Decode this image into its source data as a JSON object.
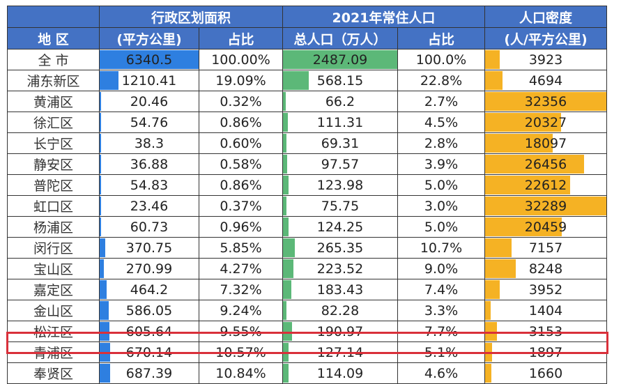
{
  "header": {
    "group_area": "行政区划面积",
    "group_pop": "2021年常住人口",
    "group_density": "人口密度",
    "col_region": "地 区",
    "col_area": "(平方公里)",
    "col_area_pct": "占比",
    "col_pop": "总人口（万人）",
    "col_pop_pct": "占比",
    "col_density": "(人/平方公里)"
  },
  "colors": {
    "header_bg": "#4472c4",
    "area_bar": "#2e7fe0",
    "pop_bar": "#5cb878",
    "density_bar": "#f5b224",
    "highlight": "#d9303a"
  },
  "highlighted_row": "松江区",
  "rows": [
    {
      "region": "全 市",
      "area": "6340.5",
      "area_pct": "100.00%",
      "pop": "2487.09",
      "pop_pct": "100.0%",
      "density": "3923"
    },
    {
      "region": "浦东新区",
      "area": "1210.41",
      "area_pct": "19.09%",
      "pop": "568.15",
      "pop_pct": "22.8%",
      "density": "4694"
    },
    {
      "region": "黄浦区",
      "area": "20.46",
      "area_pct": "0.32%",
      "pop": "66.2",
      "pop_pct": "2.7%",
      "density": "32356"
    },
    {
      "region": "徐汇区",
      "area": "54.76",
      "area_pct": "0.86%",
      "pop": "111.31",
      "pop_pct": "4.5%",
      "density": "20327"
    },
    {
      "region": "长宁区",
      "area": "38.3",
      "area_pct": "0.60%",
      "pop": "69.31",
      "pop_pct": "2.8%",
      "density": "18097"
    },
    {
      "region": "静安区",
      "area": "36.88",
      "area_pct": "0.58%",
      "pop": "97.57",
      "pop_pct": "3.9%",
      "density": "26456"
    },
    {
      "region": "普陀区",
      "area": "54.83",
      "area_pct": "0.86%",
      "pop": "123.98",
      "pop_pct": "5.0%",
      "density": "22612"
    },
    {
      "region": "虹口区",
      "area": "23.46",
      "area_pct": "0.37%",
      "pop": "75.75",
      "pop_pct": "3.0%",
      "density": "32289"
    },
    {
      "region": "杨浦区",
      "area": "60.73",
      "area_pct": "0.96%",
      "pop": "124.25",
      "pop_pct": "5.0%",
      "density": "20459"
    },
    {
      "region": "闵行区",
      "area": "370.75",
      "area_pct": "5.85%",
      "pop": "265.35",
      "pop_pct": "10.7%",
      "density": "7157"
    },
    {
      "region": "宝山区",
      "area": "270.99",
      "area_pct": "4.27%",
      "pop": "223.52",
      "pop_pct": "9.0%",
      "density": "8248"
    },
    {
      "region": "嘉定区",
      "area": "464.2",
      "area_pct": "7.32%",
      "pop": "183.43",
      "pop_pct": "7.4%",
      "density": "3952"
    },
    {
      "region": "金山区",
      "area": "586.05",
      "area_pct": "9.24%",
      "pop": "82.28",
      "pop_pct": "3.3%",
      "density": "1404"
    },
    {
      "region": "松江区",
      "area": "605.64",
      "area_pct": "9.55%",
      "pop": "190.97",
      "pop_pct": "7.7%",
      "density": "3153"
    },
    {
      "region": "青浦区",
      "area": "670.14",
      "area_pct": "10.57%",
      "pop": "127.14",
      "pop_pct": "5.1%",
      "density": "1897"
    },
    {
      "region": "奉贤区",
      "area": "687.39",
      "area_pct": "10.84%",
      "pop": "114.09",
      "pop_pct": "4.6%",
      "density": "1660"
    }
  ],
  "chart_data": {
    "type": "table",
    "title": "",
    "columns": [
      "地区",
      "行政区划面积(平方公里)",
      "面积占比",
      "2021年常住人口 总人口(万人)",
      "人口占比",
      "人口密度(人/平方公里)"
    ],
    "categories": [
      "全市",
      "浦东新区",
      "黄浦区",
      "徐汇区",
      "长宁区",
      "静安区",
      "普陀区",
      "虹口区",
      "杨浦区",
      "闵行区",
      "宝山区",
      "嘉定区",
      "金山区",
      "松江区",
      "青浦区",
      "奉贤区"
    ],
    "series": [
      {
        "name": "行政区划面积(平方公里)",
        "values": [
          6340.5,
          1210.41,
          20.46,
          54.76,
          38.3,
          36.88,
          54.83,
          23.46,
          60.73,
          370.75,
          270.99,
          464.2,
          586.05,
          605.64,
          670.14,
          687.39
        ]
      },
      {
        "name": "面积占比(%)",
        "values": [
          100.0,
          19.09,
          0.32,
          0.86,
          0.6,
          0.58,
          0.86,
          0.37,
          0.96,
          5.85,
          4.27,
          7.32,
          9.24,
          9.55,
          10.57,
          10.84
        ]
      },
      {
        "name": "总人口(万人)",
        "values": [
          2487.09,
          568.15,
          66.2,
          111.31,
          69.31,
          97.57,
          123.98,
          75.75,
          124.25,
          265.35,
          223.52,
          183.43,
          82.28,
          190.97,
          127.14,
          114.09
        ]
      },
      {
        "name": "人口占比(%)",
        "values": [
          100.0,
          22.8,
          2.7,
          4.5,
          2.8,
          3.9,
          5.0,
          3.0,
          5.0,
          10.7,
          9.0,
          7.4,
          3.3,
          7.7,
          5.1,
          4.6
        ]
      },
      {
        "name": "人口密度(人/平方公里)",
        "values": [
          3923,
          4694,
          32356,
          20327,
          18097,
          26456,
          22612,
          32289,
          20459,
          7157,
          8248,
          3952,
          1404,
          3153,
          1897,
          1660
        ]
      }
    ],
    "data_bars": {
      "area_max": 6340.5,
      "pop_max": 2487.09,
      "density_max": 32356
    },
    "highlight": "松江区"
  }
}
